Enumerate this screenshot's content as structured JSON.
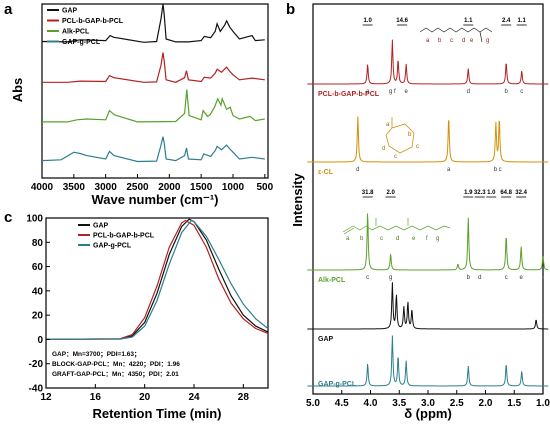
{
  "panel_labels": {
    "a": "a",
    "b": "b",
    "c": "c"
  },
  "colors": {
    "GAP": "#111111",
    "BLOCK": "#b22222",
    "ALK": "#5aa02c",
    "GRAFT": "#2d7f8e",
    "ECL": "#d4900a"
  },
  "chart_data": [
    {
      "panel": "a",
      "type": "line",
      "xlabel": "Wave number (cm⁻¹)",
      "ylabel": "Abs",
      "xlim": [
        4000,
        450
      ],
      "xticks": [
        "4000",
        "3500",
        "3000",
        "2500",
        "2000",
        "1500",
        "1000",
        "500"
      ],
      "legend_position": "top-left",
      "series": [
        {
          "name": "GAP",
          "offset": 3.0,
          "x": [
            4000,
            3600,
            3400,
            3000,
            2930,
            2870,
            2400,
            2200,
            2130,
            2100,
            2080,
            2050,
            1900,
            1700,
            1500,
            1450,
            1350,
            1280,
            1250,
            1200,
            1130,
            1100,
            1050,
            1000,
            900,
            700,
            650,
            500
          ],
          "y": [
            0.06,
            0.05,
            0.1,
            0.08,
            0.2,
            0.16,
            0.04,
            0.06,
            0.6,
            0.95,
            0.7,
            0.12,
            0.05,
            0.05,
            0.08,
            0.18,
            0.15,
            0.3,
            0.48,
            0.3,
            0.45,
            0.55,
            0.4,
            0.3,
            0.12,
            0.2,
            0.08,
            0.1
          ]
        },
        {
          "name": "PCL-b-GAP-b-PCL",
          "offset": 2.0,
          "x": [
            4000,
            3600,
            3400,
            3000,
            2940,
            2870,
            2400,
            2200,
            2130,
            2100,
            2080,
            2050,
            1900,
            1760,
            1730,
            1700,
            1500,
            1450,
            1350,
            1280,
            1250,
            1180,
            1100,
            1050,
            1000,
            900,
            700,
            500
          ],
          "y": [
            0.04,
            0.04,
            0.07,
            0.06,
            0.2,
            0.15,
            0.04,
            0.05,
            0.45,
            0.75,
            0.55,
            0.1,
            0.04,
            0.15,
            0.32,
            0.1,
            0.06,
            0.16,
            0.14,
            0.26,
            0.35,
            0.28,
            0.4,
            0.3,
            0.22,
            0.1,
            0.14,
            0.1
          ]
        },
        {
          "name": "Alk-PCL",
          "offset": 1.0,
          "x": [
            4000,
            3600,
            3450,
            3300,
            3000,
            2940,
            2865,
            2500,
            1900,
            1760,
            1725,
            1690,
            1500,
            1470,
            1400,
            1360,
            1290,
            1240,
            1190,
            1170,
            1100,
            1045,
            1000,
            900,
            730,
            650,
            500
          ],
          "y": [
            0.05,
            0.05,
            0.1,
            0.12,
            0.1,
            0.32,
            0.22,
            0.05,
            0.06,
            0.25,
            0.82,
            0.2,
            0.1,
            0.32,
            0.18,
            0.22,
            0.4,
            0.6,
            0.45,
            0.6,
            0.35,
            0.4,
            0.2,
            0.12,
            0.18,
            0.08,
            0.12
          ]
        },
        {
          "name": "GAP-g-PCL",
          "offset": 0.0,
          "x": [
            4000,
            3700,
            3500,
            3400,
            3300,
            3000,
            2940,
            2870,
            2500,
            2200,
            2130,
            2100,
            2080,
            2050,
            1900,
            1760,
            1730,
            1700,
            1500,
            1460,
            1350,
            1280,
            1250,
            1180,
            1100,
            1050,
            1000,
            900,
            700,
            500
          ],
          "y": [
            0.08,
            0.1,
            0.28,
            0.25,
            0.2,
            0.12,
            0.3,
            0.2,
            0.06,
            0.07,
            0.45,
            0.65,
            0.5,
            0.12,
            0.08,
            0.2,
            0.38,
            0.12,
            0.1,
            0.24,
            0.18,
            0.32,
            0.42,
            0.34,
            0.45,
            0.36,
            0.28,
            0.12,
            0.16,
            0.12
          ]
        }
      ]
    },
    {
      "panel": "b",
      "type": "line",
      "xlabel": "δ (ppm)",
      "ylabel": "Intensity",
      "xlim": [
        5.0,
        1.0
      ],
      "xticks": [
        "5.0",
        "4.5",
        "4.0",
        "3.5",
        "3.0",
        "2.5",
        "2.0",
        "1.5",
        "1.0"
      ],
      "spectra": [
        {
          "name": "PCL-b-GAP-b-PCL",
          "color_key": "BLOCK",
          "peaks": [
            [
              4.05,
              0.45
            ],
            [
              3.62,
              1.0
            ],
            [
              3.52,
              0.55
            ],
            [
              3.38,
              0.45
            ],
            [
              2.3,
              0.35
            ],
            [
              1.64,
              0.5
            ],
            [
              1.37,
              0.3
            ]
          ],
          "peak_labels": [
            {
              "ppm": 4.05,
              "t": "a"
            },
            {
              "ppm": 3.62,
              "t": "g f"
            },
            {
              "ppm": 3.38,
              "t": "e"
            },
            {
              "ppm": 2.3,
              "t": "d"
            },
            {
              "ppm": 1.64,
              "t": "b"
            },
            {
              "ppm": 1.37,
              "t": "c"
            }
          ],
          "integrals": [
            {
              "ppm": 4.05,
              "t": "1.0"
            },
            {
              "ppm": 3.45,
              "t": "14.6"
            },
            {
              "ppm": 2.3,
              "t": "1.1"
            },
            {
              "ppm": 1.64,
              "t": "2.4"
            },
            {
              "ppm": 1.37,
              "t": "1.1"
            }
          ]
        },
        {
          "name": "ε-CL",
          "color_key": "ECL",
          "peaks": [
            [
              4.22,
              0.95
            ],
            [
              2.64,
              0.95
            ],
            [
              1.82,
              0.8
            ],
            [
              1.76,
              0.9
            ]
          ],
          "peak_labels": [
            {
              "ppm": 4.22,
              "t": "d"
            },
            {
              "ppm": 2.64,
              "t": "a"
            },
            {
              "ppm": 1.79,
              "t": "b c"
            }
          ],
          "integrals": []
        },
        {
          "name": "Alk-PCL",
          "color_key": "ALK",
          "peaks": [
            [
              4.05,
              1.0
            ],
            [
              3.65,
              0.28
            ],
            [
              2.3,
              0.9
            ],
            [
              2.48,
              0.1
            ],
            [
              1.64,
              0.6
            ],
            [
              1.38,
              0.4
            ],
            [
              1.0,
              0.25
            ]
          ],
          "peak_labels": [
            {
              "ppm": 4.05,
              "t": "c"
            },
            {
              "ppm": 3.65,
              "t": "g"
            },
            {
              "ppm": 2.3,
              "t": "b"
            },
            {
              "ppm": 2.1,
              "t": "d"
            },
            {
              "ppm": 1.64,
              "t": "c"
            },
            {
              "ppm": 1.38,
              "t": "e"
            },
            {
              "ppm": 1.0,
              "t": "f"
            }
          ],
          "integrals": [
            {
              "ppm": 4.05,
              "t": "31.8"
            },
            {
              "ppm": 3.65,
              "t": "2.0"
            },
            {
              "ppm": 2.3,
              "t": "1.9"
            },
            {
              "ppm": 2.1,
              "t": "32.3"
            },
            {
              "ppm": 1.9,
              "t": "1.0"
            },
            {
              "ppm": 1.64,
              "t": "64.8"
            },
            {
              "ppm": 1.38,
              "t": "32.4"
            }
          ]
        },
        {
          "name": "GAP",
          "color_key": "GAP",
          "peaks": [
            [
              3.62,
              0.95
            ],
            [
              3.55,
              0.7
            ],
            [
              3.42,
              0.45
            ],
            [
              3.35,
              0.55
            ],
            [
              3.28,
              0.4
            ],
            [
              1.12,
              0.2
            ]
          ],
          "peak_labels": [],
          "integrals": []
        },
        {
          "name": "GAP-g-PCL",
          "color_key": "GRAFT",
          "peaks": [
            [
              4.05,
              0.45
            ],
            [
              3.62,
              1.0
            ],
            [
              3.52,
              0.6
            ],
            [
              3.38,
              0.5
            ],
            [
              2.3,
              0.4
            ],
            [
              1.64,
              0.45
            ],
            [
              1.37,
              0.3
            ]
          ],
          "peak_labels": [],
          "integrals": []
        }
      ],
      "block_structure_letters": [
        "a",
        "b",
        "c",
        "d",
        "e",
        "g"
      ],
      "alk_structure_letters": [
        "a",
        "b",
        "c",
        "d",
        "e",
        "f",
        "g"
      ],
      "ecl_ring_letters": [
        "a",
        "b",
        "c",
        "c",
        "d"
      ]
    },
    {
      "panel": "c",
      "type": "line",
      "xlabel": "Retention Time (min)",
      "ylabel": "",
      "xlim": [
        12,
        30
      ],
      "ylim": [
        -40,
        100
      ],
      "xticks": [
        "12",
        "16",
        "20",
        "24",
        "28"
      ],
      "yticks": [
        "100",
        "80",
        "60",
        "40",
        "20",
        "0",
        "-20",
        "-40"
      ],
      "legend_position": "top-right",
      "annotations": [
        "GAP：Mn=3700；PDI=1.63；",
        "BLOCK-GAP-PCL：Mn：4220；PDI：1.96",
        "GRAFT-GAP-PCL：Mn：4350；PDI：2.01"
      ],
      "series": [
        {
          "name": "GAP",
          "color_key": "GAP",
          "x": [
            12,
            18,
            19,
            20,
            21,
            22,
            23,
            23.6,
            24,
            25,
            26,
            27,
            28,
            29,
            30
          ],
          "y": [
            0,
            0.5,
            3,
            14,
            38,
            70,
            93,
            99,
            97,
            82,
            58,
            36,
            20,
            11,
            6
          ]
        },
        {
          "name": "PCL-b-GAP-b-PCL",
          "color_key": "BLOCK",
          "x": [
            12,
            18,
            19,
            20,
            21,
            22,
            23,
            23.3,
            24,
            25,
            26,
            27,
            28,
            29,
            30
          ],
          "y": [
            0,
            0.5,
            4,
            18,
            44,
            76,
            96,
            98,
            94,
            76,
            50,
            30,
            17,
            9,
            5
          ]
        },
        {
          "name": "GAP-g-PCL",
          "color_key": "GRAFT",
          "x": [
            12,
            18,
            19,
            20,
            21,
            22,
            23,
            23.8,
            24,
            25,
            26,
            27,
            28,
            29,
            30
          ],
          "y": [
            0,
            0.3,
            2,
            11,
            32,
            62,
            88,
            98,
            97,
            85,
            66,
            46,
            29,
            17,
            9
          ]
        }
      ]
    }
  ]
}
